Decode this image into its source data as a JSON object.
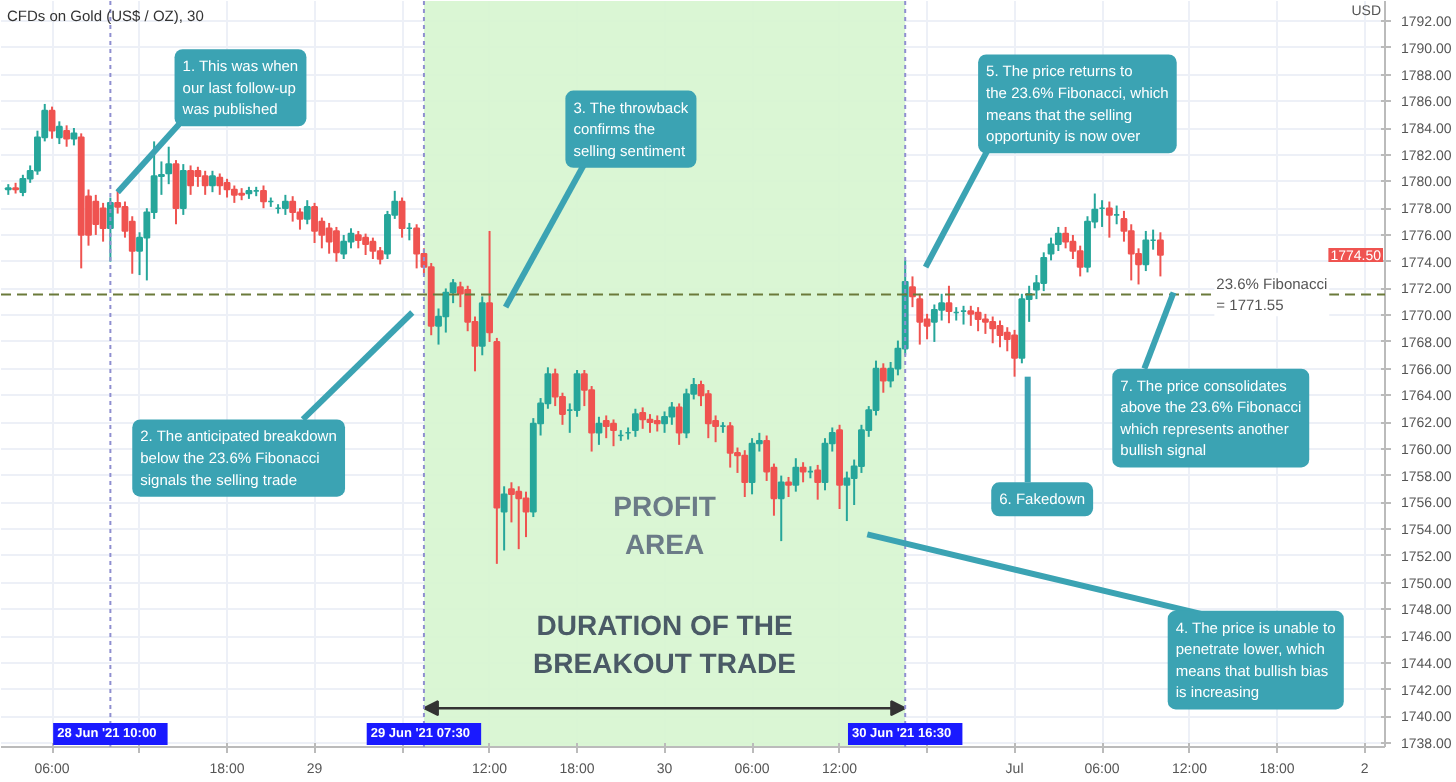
{
  "chart_data": {
    "type": "candlestick",
    "title": "CFDs on Gold (US$ / OZ), 30",
    "ylabel": "USD",
    "x": [
      "2021-06-28T03:00",
      "2021-06-28T03:30",
      "2021-06-28T04:00",
      "2021-06-28T04:30",
      "2021-06-28T05:00",
      "2021-06-28T05:30",
      "2021-06-28T06:00",
      "2021-06-28T06:30",
      "2021-06-28T07:00",
      "2021-06-28T07:30",
      "2021-06-28T08:00",
      "2021-06-28T08:30",
      "2021-06-28T09:00",
      "2021-06-28T09:30",
      "2021-06-28T10:00",
      "2021-06-28T10:30",
      "2021-06-28T11:00",
      "2021-06-28T11:30",
      "2021-06-28T12:00",
      "2021-06-28T12:30",
      "2021-06-28T13:00",
      "2021-06-28T13:30",
      "2021-06-28T14:00",
      "2021-06-28T14:30",
      "2021-06-28T15:00",
      "2021-06-28T15:30",
      "2021-06-28T16:00",
      "2021-06-28T16:30",
      "2021-06-28T17:00",
      "2021-06-28T17:30",
      "2021-06-28T18:00",
      "2021-06-28T18:30",
      "2021-06-28T19:00",
      "2021-06-28T19:30",
      "2021-06-28T20:00",
      "2021-06-28T20:30",
      "2021-06-28T21:00",
      "2021-06-28T21:30",
      "2021-06-28T22:00",
      "2021-06-28T22:30",
      "2021-06-28T23:00",
      "2021-06-28T23:30",
      "2021-06-29T00:00",
      "2021-06-29T00:30",
      "2021-06-29T01:00",
      "2021-06-29T01:30",
      "2021-06-29T02:00",
      "2021-06-29T02:30",
      "2021-06-29T03:00",
      "2021-06-29T03:30",
      "2021-06-29T04:00",
      "2021-06-29T04:30",
      "2021-06-29T05:00",
      "2021-06-29T05:30",
      "2021-06-29T06:00",
      "2021-06-29T06:30",
      "2021-06-29T07:00",
      "2021-06-29T07:30",
      "2021-06-29T08:00",
      "2021-06-29T08:30",
      "2021-06-29T09:00",
      "2021-06-29T09:30",
      "2021-06-29T10:00",
      "2021-06-29T10:30",
      "2021-06-29T11:00",
      "2021-06-29T11:30",
      "2021-06-29T12:00",
      "2021-06-29T12:30",
      "2021-06-29T13:00",
      "2021-06-29T13:30",
      "2021-06-29T14:00",
      "2021-06-29T14:30",
      "2021-06-29T15:00",
      "2021-06-29T15:30",
      "2021-06-29T16:00",
      "2021-06-29T16:30",
      "2021-06-29T17:00",
      "2021-06-29T17:30",
      "2021-06-29T18:00",
      "2021-06-29T18:30",
      "2021-06-29T19:00",
      "2021-06-29T19:30",
      "2021-06-29T20:00",
      "2021-06-29T20:30",
      "2021-06-29T21:00",
      "2021-06-29T21:30",
      "2021-06-29T22:00",
      "2021-06-29T22:30",
      "2021-06-29T23:00",
      "2021-06-29T23:30",
      "2021-06-30T00:00",
      "2021-06-30T00:30",
      "2021-06-30T01:00",
      "2021-06-30T01:30",
      "2021-06-30T02:00",
      "2021-06-30T02:30",
      "2021-06-30T03:00",
      "2021-06-30T03:30",
      "2021-06-30T04:00",
      "2021-06-30T04:30",
      "2021-06-30T05:00",
      "2021-06-30T05:30",
      "2021-06-30T06:00",
      "2021-06-30T06:30",
      "2021-06-30T07:00",
      "2021-06-30T07:30",
      "2021-06-30T08:00",
      "2021-06-30T08:30",
      "2021-06-30T09:00",
      "2021-06-30T09:30",
      "2021-06-30T10:00",
      "2021-06-30T10:30",
      "2021-06-30T11:00",
      "2021-06-30T11:30",
      "2021-06-30T12:00",
      "2021-06-30T12:30",
      "2021-06-30T13:00",
      "2021-06-30T13:30",
      "2021-06-30T14:00",
      "2021-06-30T14:30",
      "2021-06-30T15:00",
      "2021-06-30T15:30",
      "2021-06-30T16:00",
      "2021-06-30T16:30",
      "2021-06-30T17:00",
      "2021-06-30T17:30",
      "2021-06-30T18:00",
      "2021-06-30T18:30",
      "2021-06-30T19:00",
      "2021-06-30T19:30",
      "2021-06-30T20:00",
      "2021-06-30T20:30",
      "2021-06-30T21:00",
      "2021-06-30T21:30",
      "2021-06-30T22:00",
      "2021-06-30T22:30",
      "2021-06-30T23:00",
      "2021-06-30T23:30",
      "2021-07-01T00:00",
      "2021-07-01T00:30",
      "2021-07-01T01:00",
      "2021-07-01T01:30",
      "2021-07-01T02:00",
      "2021-07-01T02:30",
      "2021-07-01T03:00",
      "2021-07-01T03:30",
      "2021-07-01T04:00",
      "2021-07-01T04:30",
      "2021-07-01T05:00",
      "2021-07-01T05:30",
      "2021-07-01T06:00",
      "2021-07-01T06:30",
      "2021-07-01T07:00",
      "2021-07-01T07:30",
      "2021-07-01T08:00",
      "2021-07-01T08:30",
      "2021-07-01T09:00",
      "2021-07-01T09:30",
      "2021-07-01T10:00"
    ],
    "ohlc": [
      [
        1779.4,
        1779.8,
        1779.0,
        1779.5
      ],
      [
        1779.5,
        1779.9,
        1779.1,
        1779.4
      ],
      [
        1779.2,
        1780.5,
        1778.9,
        1780.2
      ],
      [
        1780.2,
        1781.2,
        1779.9,
        1780.8
      ],
      [
        1780.8,
        1783.8,
        1780.5,
        1783.3
      ],
      [
        1783.3,
        1785.8,
        1783.0,
        1785.3
      ],
      [
        1785.3,
        1785.6,
        1783.2,
        1783.8
      ],
      [
        1783.3,
        1784.5,
        1782.8,
        1784.1
      ],
      [
        1783.8,
        1784.2,
        1782.6,
        1783.2
      ],
      [
        1783.2,
        1784.0,
        1782.7,
        1783.6
      ],
      [
        1783.3,
        1783.6,
        1773.5,
        1776.0
      ],
      [
        1778.9,
        1779.4,
        1775.2,
        1776.0
      ],
      [
        1778.5,
        1779.0,
        1776.0,
        1776.8
      ],
      [
        1778.0,
        1778.4,
        1775.5,
        1776.5
      ],
      [
        1776.5,
        1778.8,
        1774.0,
        1778.4
      ],
      [
        1778.4,
        1779.3,
        1777.6,
        1778.1
      ],
      [
        1778.1,
        1778.5,
        1775.8,
        1776.3
      ],
      [
        1777.0,
        1777.4,
        1773.1,
        1774.8
      ],
      [
        1774.8,
        1776.2,
        1773.0,
        1775.8
      ],
      [
        1775.8,
        1778.0,
        1772.6,
        1777.7
      ],
      [
        1777.7,
        1783.0,
        1777.2,
        1780.4
      ],
      [
        1780.4,
        1781.5,
        1779.0,
        1780.5
      ],
      [
        1780.6,
        1782.6,
        1779.8,
        1781.3
      ],
      [
        1781.3,
        1781.6,
        1776.8,
        1778.0
      ],
      [
        1778.0,
        1781.3,
        1777.5,
        1780.8
      ],
      [
        1780.8,
        1781.2,
        1779.0,
        1779.7
      ],
      [
        1780.8,
        1781.1,
        1779.6,
        1780.4
      ],
      [
        1780.4,
        1780.8,
        1779.0,
        1779.7
      ],
      [
        1779.7,
        1780.8,
        1779.2,
        1780.4
      ],
      [
        1780.3,
        1780.6,
        1779.0,
        1779.7
      ],
      [
        1779.9,
        1780.2,
        1778.8,
        1779.4
      ],
      [
        1779.4,
        1779.7,
        1778.4,
        1779.0
      ],
      [
        1779.1,
        1779.5,
        1778.6,
        1779.0
      ],
      [
        1779.1,
        1779.6,
        1778.7,
        1779.3
      ],
      [
        1779.3,
        1779.6,
        1778.9,
        1779.3
      ],
      [
        1779.3,
        1779.7,
        1778.0,
        1778.5
      ],
      [
        1778.5,
        1778.8,
        1778.1,
        1778.5
      ],
      [
        1778.0,
        1778.3,
        1777.6,
        1778.0
      ],
      [
        1778.0,
        1779.0,
        1777.5,
        1778.5
      ],
      [
        1778.5,
        1778.9,
        1777.0,
        1777.7
      ],
      [
        1777.7,
        1778.0,
        1776.4,
        1777.2
      ],
      [
        1777.2,
        1778.6,
        1776.8,
        1778.1
      ],
      [
        1778.1,
        1778.4,
        1775.4,
        1776.3
      ],
      [
        1777.0,
        1777.3,
        1775.0,
        1776.0
      ],
      [
        1776.5,
        1776.9,
        1774.6,
        1775.5
      ],
      [
        1776.3,
        1776.6,
        1774.0,
        1774.7
      ],
      [
        1774.6,
        1776.0,
        1774.2,
        1775.5
      ],
      [
        1775.5,
        1776.5,
        1775.0,
        1776.1
      ],
      [
        1776.0,
        1776.3,
        1775.0,
        1775.6
      ],
      [
        1775.8,
        1776.1,
        1774.5,
        1775.3
      ],
      [
        1775.5,
        1775.8,
        1774.2,
        1774.8
      ],
      [
        1774.8,
        1775.1,
        1773.8,
        1774.2
      ],
      [
        1774.6,
        1777.8,
        1774.2,
        1777.5
      ],
      [
        1777.5,
        1779.3,
        1777.2,
        1778.5
      ],
      [
        1778.5,
        1778.8,
        1775.8,
        1776.5
      ],
      [
        1776.5,
        1776.9,
        1775.6,
        1776.5
      ],
      [
        1776.5,
        1776.8,
        1773.5,
        1774.6
      ],
      [
        1774.6,
        1775.0,
        1773.0,
        1773.6
      ],
      [
        1773.6,
        1773.9,
        1768.5,
        1769.2
      ],
      [
        1769.2,
        1770.5,
        1767.8,
        1769.9
      ],
      [
        1769.9,
        1772.0,
        1768.7,
        1771.7
      ],
      [
        1771.7,
        1772.7,
        1770.9,
        1772.4
      ],
      [
        1772.1,
        1772.5,
        1770.6,
        1771.6
      ],
      [
        1771.9,
        1772.2,
        1768.8,
        1769.5
      ],
      [
        1769.5,
        1769.9,
        1765.8,
        1767.7
      ],
      [
        1767.7,
        1771.4,
        1767.0,
        1770.9
      ],
      [
        1770.9,
        1776.3,
        1768.0,
        1768.7
      ],
      [
        1768.0,
        1768.3,
        1751.4,
        1755.6
      ],
      [
        1755.3,
        1757.2,
        1752.4,
        1756.6
      ],
      [
        1757.0,
        1757.5,
        1754.5,
        1756.6
      ],
      [
        1756.8,
        1757.2,
        1752.5,
        1756.3
      ],
      [
        1756.3,
        1756.8,
        1753.4,
        1755.3
      ],
      [
        1755.3,
        1762.3,
        1754.9,
        1761.9
      ],
      [
        1761.9,
        1763.8,
        1761.0,
        1763.4
      ],
      [
        1763.4,
        1766.1,
        1763.0,
        1765.6
      ],
      [
        1765.6,
        1766.0,
        1763.2,
        1763.9
      ],
      [
        1763.9,
        1764.2,
        1761.8,
        1762.6
      ],
      [
        1762.9,
        1763.4,
        1761.2,
        1762.9
      ],
      [
        1762.9,
        1765.9,
        1762.4,
        1765.6
      ],
      [
        1765.6,
        1765.9,
        1763.2,
        1764.4
      ],
      [
        1764.4,
        1764.7,
        1759.8,
        1761.2
      ],
      [
        1761.2,
        1762.4,
        1760.3,
        1761.9
      ],
      [
        1762.1,
        1762.5,
        1760.8,
        1761.7
      ],
      [
        1761.9,
        1762.2,
        1760.2,
        1761.4
      ],
      [
        1761.0,
        1761.4,
        1760.6,
        1761.0
      ],
      [
        1761.2,
        1761.6,
        1760.7,
        1761.2
      ],
      [
        1761.4,
        1763.0,
        1760.9,
        1762.6
      ],
      [
        1762.7,
        1763.1,
        1761.5,
        1762.2
      ],
      [
        1762.2,
        1762.6,
        1761.2,
        1762.0
      ],
      [
        1762.1,
        1762.5,
        1761.3,
        1761.9
      ],
      [
        1761.9,
        1762.8,
        1761.2,
        1762.4
      ],
      [
        1762.4,
        1763.5,
        1761.8,
        1763.1
      ],
      [
        1763.1,
        1763.4,
        1760.3,
        1761.2
      ],
      [
        1761.2,
        1764.5,
        1760.8,
        1764.1
      ],
      [
        1764.1,
        1765.3,
        1763.7,
        1764.8
      ],
      [
        1764.8,
        1765.1,
        1763.2,
        1764.0
      ],
      [
        1764.1,
        1764.4,
        1760.8,
        1761.9
      ],
      [
        1762.1,
        1762.5,
        1760.5,
        1761.7
      ],
      [
        1761.7,
        1762.0,
        1761.2,
        1761.7
      ],
      [
        1761.7,
        1762.0,
        1758.6,
        1759.7
      ],
      [
        1759.7,
        1760.1,
        1758.2,
        1759.5
      ],
      [
        1759.5,
        1759.9,
        1756.4,
        1757.5
      ],
      [
        1757.5,
        1760.8,
        1756.6,
        1760.4
      ],
      [
        1760.4,
        1761.2,
        1759.8,
        1760.6
      ],
      [
        1760.6,
        1761.0,
        1757.6,
        1758.3
      ],
      [
        1758.6,
        1758.9,
        1755.0,
        1756.3
      ],
      [
        1756.3,
        1758.0,
        1753.1,
        1757.5
      ],
      [
        1757.5,
        1757.9,
        1756.4,
        1757.3
      ],
      [
        1757.3,
        1759.3,
        1756.8,
        1758.6
      ],
      [
        1758.6,
        1759.0,
        1757.5,
        1758.3
      ],
      [
        1758.3,
        1758.7,
        1757.8,
        1758.3
      ],
      [
        1758.4,
        1758.8,
        1756.2,
        1757.5
      ],
      [
        1757.5,
        1760.8,
        1756.9,
        1760.4
      ],
      [
        1760.4,
        1761.6,
        1759.8,
        1761.2
      ],
      [
        1761.4,
        1761.8,
        1755.5,
        1757.3
      ],
      [
        1757.3,
        1758.3,
        1754.6,
        1757.8
      ],
      [
        1757.8,
        1759.2,
        1755.8,
        1758.7
      ],
      [
        1758.7,
        1761.8,
        1758.2,
        1761.4
      ],
      [
        1761.4,
        1763.2,
        1760.9,
        1762.9
      ],
      [
        1762.9,
        1766.6,
        1762.5,
        1766.0
      ],
      [
        1766.0,
        1766.4,
        1764.2,
        1765.1
      ],
      [
        1765.1,
        1766.5,
        1764.6,
        1766.0
      ],
      [
        1766.0,
        1768.1,
        1765.5,
        1767.5
      ],
      [
        1767.5,
        1774.1,
        1767.0,
        1772.5
      ],
      [
        1772.1,
        1772.9,
        1770.6,
        1771.4
      ],
      [
        1771.2,
        1771.6,
        1767.8,
        1769.5
      ],
      [
        1769.7,
        1770.1,
        1768.2,
        1769.2
      ],
      [
        1769.5,
        1770.8,
        1768.0,
        1770.4
      ],
      [
        1770.4,
        1771.6,
        1769.6,
        1770.9
      ],
      [
        1770.9,
        1772.2,
        1769.4,
        1770.3
      ],
      [
        1770.2,
        1770.6,
        1769.6,
        1770.2
      ],
      [
        1770.3,
        1770.7,
        1769.3,
        1770.3
      ],
      [
        1770.3,
        1770.7,
        1769.2,
        1770.1
      ],
      [
        1770.2,
        1770.6,
        1768.8,
        1769.7
      ],
      [
        1769.7,
        1770.1,
        1768.6,
        1769.5
      ],
      [
        1769.5,
        1769.9,
        1767.9,
        1769.0
      ],
      [
        1769.2,
        1769.6,
        1767.6,
        1768.5
      ],
      [
        1768.7,
        1769.1,
        1767.3,
        1768.2
      ],
      [
        1768.5,
        1768.9,
        1765.4,
        1766.8
      ],
      [
        1766.8,
        1771.6,
        1766.4,
        1771.2
      ],
      [
        1771.2,
        1772.2,
        1769.5,
        1771.6
      ],
      [
        1771.9,
        1773.0,
        1771.2,
        1772.4
      ],
      [
        1772.4,
        1774.7,
        1771.8,
        1774.3
      ],
      [
        1774.6,
        1775.8,
        1774.1,
        1775.3
      ],
      [
        1775.3,
        1776.6,
        1774.8,
        1776.1
      ],
      [
        1776.1,
        1776.6,
        1775.0,
        1775.5
      ],
      [
        1775.5,
        1776.0,
        1774.2,
        1774.8
      ],
      [
        1774.8,
        1775.2,
        1772.9,
        1773.6
      ],
      [
        1773.6,
        1777.4,
        1773.2,
        1777.0
      ],
      [
        1777.0,
        1779.1,
        1776.5,
        1777.9
      ],
      [
        1778.0,
        1778.6,
        1776.6,
        1778.0
      ],
      [
        1778.0,
        1778.5,
        1775.8,
        1777.5
      ],
      [
        1777.5,
        1778.2,
        1776.8,
        1777.5
      ],
      [
        1777.2,
        1777.8,
        1775.5,
        1776.3
      ],
      [
        1776.3,
        1776.8,
        1772.6,
        1774.6
      ],
      [
        1774.6,
        1775.0,
        1772.3,
        1773.8
      ],
      [
        1773.8,
        1776.3,
        1773.3,
        1775.6
      ],
      [
        1775.6,
        1776.4,
        1774.9,
        1775.6
      ],
      [
        1775.6,
        1776.2,
        1772.9,
        1774.5
      ]
    ],
    "xlim": [
      "2021-06-28T02:30",
      "2021-07-02T01:24"
    ],
    "ylim": [
      1737.7,
      1793.5
    ],
    "xticks": [
      {
        "value": "2021-06-28T06:00",
        "label": "06:00"
      },
      {
        "value": "2021-06-28T12:00",
        "label": null
      },
      {
        "value": "2021-06-28T18:00",
        "label": "18:00"
      },
      {
        "value": "2021-06-29T00:00",
        "label": "29"
      },
      {
        "value": "2021-06-29T06:00",
        "label": null
      },
      {
        "value": "2021-06-29T12:00",
        "label": "12:00"
      },
      {
        "value": "2021-06-29T18:00",
        "label": "18:00"
      },
      {
        "value": "2021-06-30T00:00",
        "label": "30"
      },
      {
        "value": "2021-06-30T06:00",
        "label": "06:00"
      },
      {
        "value": "2021-06-30T12:00",
        "label": "12:00"
      },
      {
        "value": "2021-06-30T18:00",
        "label": null
      },
      {
        "value": "2021-07-01T00:00",
        "label": "Jul"
      },
      {
        "value": "2021-07-01T06:00",
        "label": "06:00"
      },
      {
        "value": "2021-07-01T12:00",
        "label": "12:00"
      },
      {
        "value": "2021-07-01T18:00",
        "label": "18:00"
      },
      {
        "value": "2021-07-02T00:00",
        "label": "2"
      }
    ],
    "yticks": [
      {
        "value": 1738,
        "label": "1738.00"
      },
      {
        "value": 1740,
        "label": "1740.00"
      },
      {
        "value": 1742,
        "label": "1742.00"
      },
      {
        "value": 1744,
        "label": "1744.00"
      },
      {
        "value": 1746,
        "label": "1746.00"
      },
      {
        "value": 1748,
        "label": "1748.00"
      },
      {
        "value": 1750,
        "label": "1750.00"
      },
      {
        "value": 1752,
        "label": "1752.00"
      },
      {
        "value": 1754,
        "label": "1754.00"
      },
      {
        "value": 1756,
        "label": "1756.00"
      },
      {
        "value": 1758,
        "label": "1758.00"
      },
      {
        "value": 1760,
        "label": "1760.00"
      },
      {
        "value": 1762,
        "label": "1762.00"
      },
      {
        "value": 1764,
        "label": "1764.00"
      },
      {
        "value": 1766,
        "label": "1766.00"
      },
      {
        "value": 1768,
        "label": "1768.00"
      },
      {
        "value": 1770,
        "label": "1770.00"
      },
      {
        "value": 1772,
        "label": "1772.00"
      },
      {
        "value": 1774,
        "label": "1774.00"
      },
      {
        "value": 1776,
        "label": "1776.00"
      },
      {
        "value": 1778,
        "label": "1778.00"
      },
      {
        "value": 1780,
        "label": "1780.00"
      },
      {
        "value": 1782,
        "label": "1782.00"
      },
      {
        "value": 1784,
        "label": "1784.00"
      },
      {
        "value": 1786,
        "label": "1786.00"
      },
      {
        "value": 1788,
        "label": "1788.00"
      },
      {
        "value": 1790,
        "label": "1790.00"
      },
      {
        "value": 1792,
        "label": "1792.00"
      }
    ],
    "grid": true,
    "ref_lines": [
      {
        "axis": "y",
        "value": 1771.55,
        "label": "23.6% Fibonacci\n= 1771.55",
        "color": "#6b7a3a",
        "line_style": "dashed"
      },
      {
        "axis": "x",
        "value": "2021-06-28T10:00",
        "label": "28 Jun '21   10:00",
        "color": "#8f8fd0",
        "line_style": "dotted"
      },
      {
        "axis": "x",
        "value": "2021-06-29T07:30",
        "label": "29 Jun '21   07:30",
        "color": "#8f8fd0",
        "line_style": "dotted"
      },
      {
        "axis": "x",
        "value": "2021-06-30T16:30",
        "label": "30 Jun '21   16:30",
        "color": "#8f8fd0",
        "line_style": "dotted"
      }
    ],
    "bands": [
      {
        "axis": "x",
        "from": "2021-06-29T07:30",
        "to": "2021-06-30T16:30",
        "label": "PROFIT\nAREA",
        "color": "#d6f5cf"
      }
    ],
    "annotations": [
      {
        "text": "1. This was when\nour last follow-up\nwas published",
        "x": "2021-06-28T10:30",
        "y": 1779.2
      },
      "2. The anticipated breakdown\nbelow the 23.6% Fibonacci\nsignals the selling trade",
      "3. The throwback\nconfirms the\nselling sentiment",
      "4. The price is unable to\npenetrate lower, which\nmeans that bullish bias\nis increasing",
      "5. The price returns to\nthe 23.6% Fibonacci, which\nmeans that the selling\nopportunity is now over",
      "6. Fakedown",
      {
        "text": "7. The price consolidates\nabove the 23.6% Fibonacci\nwhich represents another\nbullish signal",
        "x": "2021-07-01T10:54",
        "y": 1771.7
      },
      "DURATION OF THE\nBREAKOUT TRADE",
      "1774.50"
    ]
  }
}
